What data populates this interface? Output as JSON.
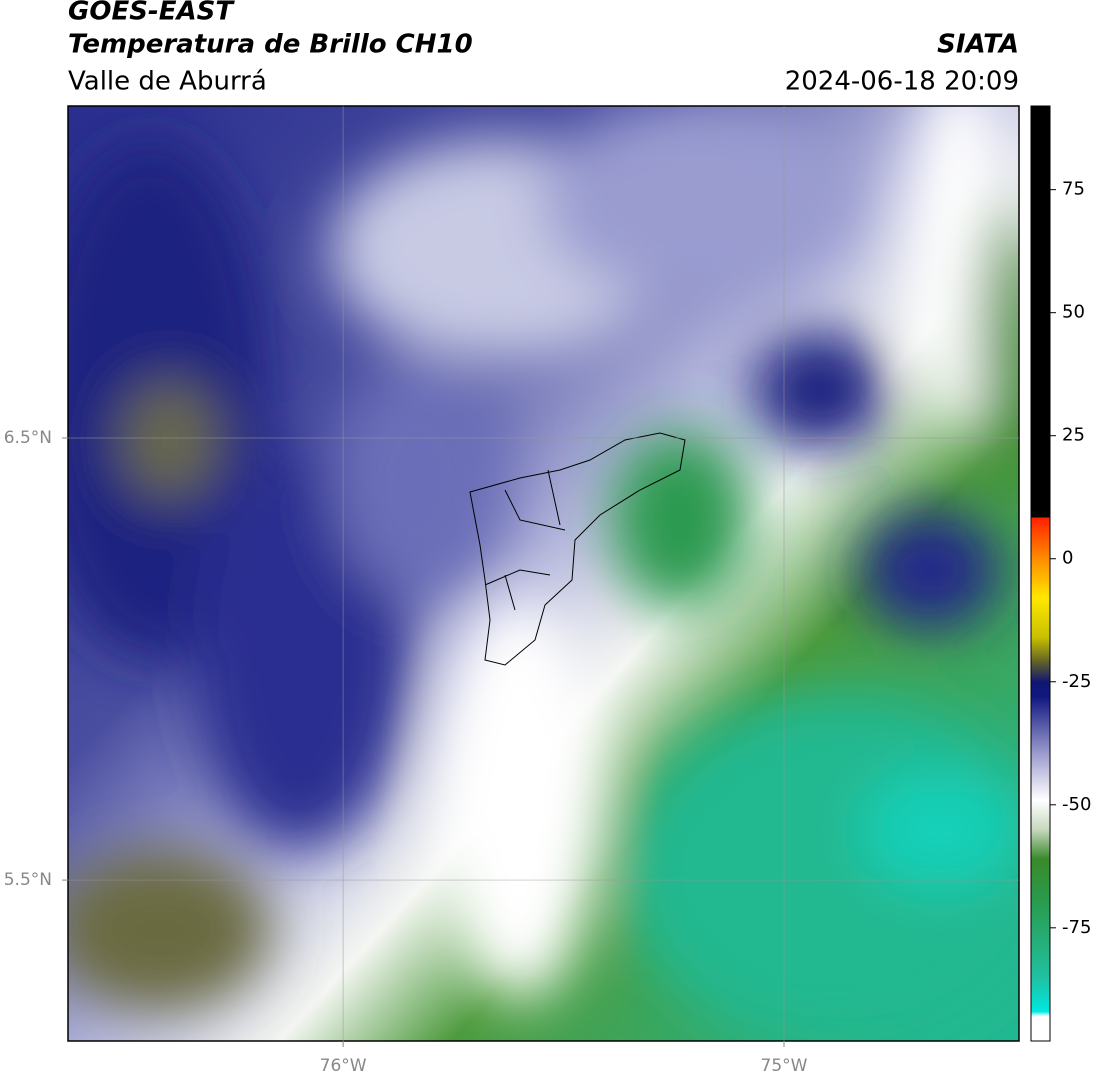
{
  "header": {
    "title": "GOES-EAST",
    "subtitle": "Temperatura de Brillo CH10",
    "region": "Valle de Aburrá",
    "source": "SIATA",
    "datetime": "2024-06-18 20:09"
  },
  "map": {
    "xlim": [
      -76.624,
      -74.467
    ],
    "ylim": [
      5.136,
      7.251
    ],
    "xticks": [
      {
        "value": -76,
        "label": "76°W"
      },
      {
        "value": -75,
        "label": "75°W"
      }
    ],
    "yticks": [
      {
        "value": 5.5,
        "label": "5.5°N"
      },
      {
        "value": 6.5,
        "label": "6.5°N"
      }
    ],
    "grid": true
  },
  "colorbar": {
    "lim": [
      -98,
      92
    ],
    "ticks": [
      75,
      50,
      25,
      0,
      -25,
      -50,
      -75
    ],
    "stops": [
      [
        92,
        "#000000"
      ],
      [
        8.4,
        "#000000"
      ],
      [
        8.4,
        "#ff2000"
      ],
      [
        0,
        "#ff8c00"
      ],
      [
        -8,
        "#ffe800"
      ],
      [
        -16,
        "#c8c000"
      ],
      [
        -21,
        "#606028"
      ],
      [
        -25,
        "#101870"
      ],
      [
        -28,
        "#101880"
      ],
      [
        -40,
        "#a0a0d0"
      ],
      [
        -49,
        "#ffffff"
      ],
      [
        -55,
        "#c8d8c0"
      ],
      [
        -61,
        "#3a8a2a"
      ],
      [
        -69,
        "#2a9a4a"
      ],
      [
        -85,
        "#20c0a0"
      ],
      [
        -92,
        "#00e8e0"
      ],
      [
        -93,
        "#ffffff"
      ],
      [
        -98,
        "#ffffff"
      ]
    ]
  }
}
